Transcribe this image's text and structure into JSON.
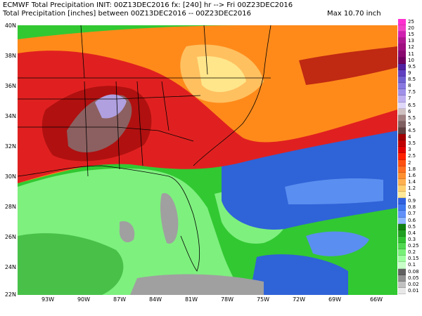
{
  "header": {
    "line1": "ECMWF Total Precipitation INIT: 00Z13DEC2016 fx: [240] hr --> Fri 00Z23DEC2016",
    "line2": "Total Precipitation [inches] between 00Z13DEC2016 -- 00Z23DEC2016",
    "max_label": "Max 10.70 inch"
  },
  "map": {
    "lat_labels": [
      "40N",
      "38N",
      "36N",
      "34N",
      "32N",
      "30N",
      "28N",
      "26N",
      "24N",
      "22N"
    ],
    "lon_labels": [
      "93W",
      "90W",
      "87W",
      "84W",
      "81W",
      "78W",
      "75W",
      "72W",
      "69W",
      "66W"
    ],
    "colors": {
      "ocean_green": "#32c832",
      "light_green": "#7ef07e",
      "dark_green": "#1e9a1e",
      "blue": "#2f63d8",
      "light_blue": "#5a8ef0",
      "red": "#e02020",
      "dark_red": "#b01010",
      "orange": "#ff8a1a",
      "light_orange": "#ffc060",
      "yellow": "#ffe68a",
      "brown": "#8c6060",
      "lavender": "#b0a0e0",
      "gray": "#a0a0a0"
    }
  },
  "legend": {
    "items": [
      {
        "label": "25",
        "color": "#ff30d0"
      },
      {
        "label": "20",
        "color": "#f040c8"
      },
      {
        "label": "15",
        "color": "#d020b0"
      },
      {
        "label": "13",
        "color": "#b01890"
      },
      {
        "label": "12",
        "color": "#a01080"
      },
      {
        "label": "11",
        "color": "#880870"
      },
      {
        "label": "10",
        "color": "#700060"
      },
      {
        "label": "9.5",
        "color": "#5020a0"
      },
      {
        "label": "9",
        "color": "#6040c0"
      },
      {
        "label": "8.5",
        "color": "#7060d0"
      },
      {
        "label": "8",
        "color": "#8878e0"
      },
      {
        "label": "7.5",
        "color": "#a090e8"
      },
      {
        "label": "7",
        "color": "#c0b0f0"
      },
      {
        "label": "6.5",
        "color": "#e0d8f8"
      },
      {
        "label": "6",
        "color": "#d0c0c0"
      },
      {
        "label": "5.5",
        "color": "#a08080"
      },
      {
        "label": "5",
        "color": "#806060"
      },
      {
        "label": "4.5",
        "color": "#604040"
      },
      {
        "label": "4",
        "color": "#a00000"
      },
      {
        "label": "3.5",
        "color": "#c00000"
      },
      {
        "label": "3",
        "color": "#e00000"
      },
      {
        "label": "2.5",
        "color": "#ff2000"
      },
      {
        "label": "2",
        "color": "#ff5010"
      },
      {
        "label": "1.8",
        "color": "#ff7020"
      },
      {
        "label": "1.6",
        "color": "#ff9030"
      },
      {
        "label": "1.4",
        "color": "#ffb050"
      },
      {
        "label": "1.2",
        "color": "#ffd070"
      },
      {
        "label": "1",
        "color": "#ffe898"
      },
      {
        "label": "0.9",
        "color": "#3060e0"
      },
      {
        "label": "0.8",
        "color": "#4078f0"
      },
      {
        "label": "0.7",
        "color": "#6090f8"
      },
      {
        "label": "0.6",
        "color": "#90b8ff"
      },
      {
        "label": "0.5",
        "color": "#108010"
      },
      {
        "label": "0.4",
        "color": "#20a020"
      },
      {
        "label": "0.3",
        "color": "#30c030"
      },
      {
        "label": "0.25",
        "color": "#50d850"
      },
      {
        "label": "0.2",
        "color": "#78f078"
      },
      {
        "label": "0.15",
        "color": "#a0ffa0"
      },
      {
        "label": "0.1",
        "color": "#c8ffc8"
      },
      {
        "label": "0.08",
        "color": "#606060"
      },
      {
        "label": "0.05",
        "color": "#909090"
      },
      {
        "label": "0.02",
        "color": "#c0c0c0"
      },
      {
        "label": "0.01",
        "color": "#e8e8e8"
      }
    ]
  }
}
